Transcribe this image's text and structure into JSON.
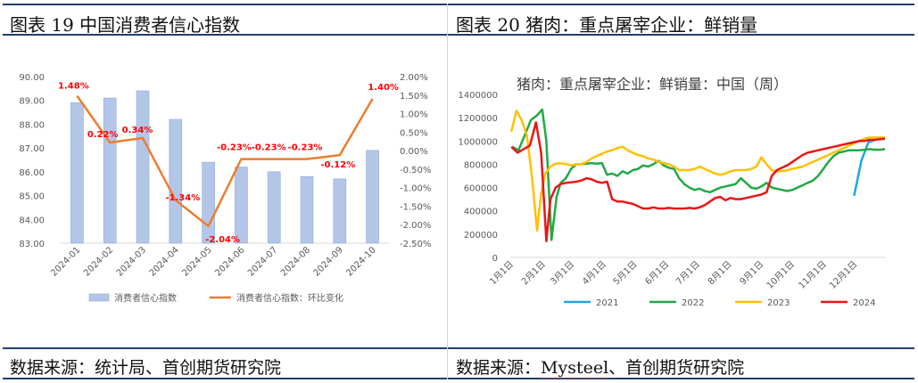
{
  "left_panel": {
    "title": "图表 19  中国消费者信心指数",
    "source": "数据来源：统计局、首创期货研究院"
  },
  "right_panel": {
    "title": "图表 20  猪肉：重点屠宰企业：鲜销量",
    "source_prefix": "数据来源：",
    "source_brand": "Mysteel",
    "source_suffix": "、首创期货研究院"
  },
  "colors": {
    "frame_line": "#1f3f6e",
    "bar_fill": "#b4c6e7",
    "bar_stroke": "#8ea9db",
    "line_orange": "#ed7d31",
    "label_red": "#ff0000",
    "s2021": "#1ea7e1",
    "s2022": "#22a846",
    "s2023": "#ffc000",
    "s2024": "#e81717"
  },
  "chart_data": [
    {
      "type": "bar",
      "categories": [
        "2024-01",
        "2024-02",
        "2024-03",
        "2024-04",
        "2024-05",
        "2024-06",
        "2024-07",
        "2024-08",
        "2024-09",
        "2024-10"
      ],
      "series": [
        {
          "name": "消费者信心指数",
          "type": "bar",
          "axis": "left",
          "values": [
            88.9,
            89.1,
            89.4,
            88.2,
            86.4,
            86.2,
            86.0,
            85.8,
            85.7,
            86.9
          ]
        },
        {
          "name": "消费者信心指数：环比变化",
          "type": "line",
          "axis": "right",
          "values": [
            1.48,
            0.22,
            0.34,
            -1.34,
            -2.04,
            -0.23,
            -0.23,
            -0.23,
            -0.12,
            1.4
          ],
          "labels": [
            "1.48%",
            "0.22%",
            "0.34%",
            "-1.34%",
            "-2.04%",
            "-0.23%",
            "-0.23%",
            "-0.23%",
            "-0.12%",
            "1.40%"
          ]
        }
      ],
      "ylim_left": [
        83,
        90
      ],
      "yticks_left": [
        "90.00",
        "89.00",
        "88.00",
        "87.00",
        "86.00",
        "85.00",
        "84.00",
        "83.00"
      ],
      "ylim_right": [
        -2.5,
        2.0
      ],
      "yticks_right": [
        "2.00%",
        "1.50%",
        "1.00%",
        "0.50%",
        "0.00%",
        "-0.50%",
        "-1.00%",
        "-1.50%",
        "-2.00%",
        "-2.50%"
      ],
      "legend": [
        "消费者信心指数",
        "消费者信心指数：环比变化"
      ],
      "legend_position": "bottom"
    },
    {
      "type": "line",
      "title": "猪肉：重点屠宰企业：鲜销量：中国（周）",
      "xticks": [
        "1月1日",
        "2月1日",
        "3月1日",
        "4月1日",
        "5月1日",
        "6月1日",
        "7月1日",
        "8月1日",
        "9月1日",
        "10月1日",
        "11月1日",
        "12月1日"
      ],
      "xrange_days": [
        1,
        365
      ],
      "ylim": [
        0,
        1400000
      ],
      "yticks": [
        "1400000",
        "1200000",
        "1000000",
        "800000",
        "600000",
        "400000",
        "200000",
        "0"
      ],
      "legend_position": "bottom",
      "series": [
        {
          "name": "2021",
          "x": [
            335,
            342,
            349,
            356,
            363
          ],
          "values": [
            530000,
            830000,
            990000,
            1010000,
            1020000
          ]
        },
        {
          "name": "2022",
          "x": [
            3,
            9,
            15,
            21,
            27,
            32,
            36,
            41,
            46,
            50,
            55,
            60,
            65,
            70,
            75,
            80,
            85,
            90,
            95,
            100,
            105,
            110,
            115,
            120,
            125,
            130,
            135,
            140,
            145,
            150,
            155,
            160,
            165,
            170,
            175,
            180,
            185,
            190,
            195,
            200,
            205,
            210,
            215,
            220,
            225,
            230,
            235,
            240,
            245,
            250,
            255,
            260,
            265,
            270,
            275,
            280,
            285,
            290,
            295,
            300,
            305,
            310,
            315,
            320,
            325,
            330,
            335,
            340,
            345,
            350,
            355,
            360,
            365
          ],
          "values": [
            950000,
            920000,
            1050000,
            1180000,
            1220000,
            1270000,
            1000000,
            150000,
            520000,
            640000,
            680000,
            760000,
            800000,
            800000,
            805000,
            810000,
            805000,
            810000,
            710000,
            720000,
            700000,
            740000,
            720000,
            750000,
            760000,
            790000,
            780000,
            800000,
            830000,
            790000,
            770000,
            760000,
            680000,
            630000,
            600000,
            580000,
            590000,
            570000,
            560000,
            580000,
            600000,
            610000,
            620000,
            630000,
            680000,
            640000,
            600000,
            590000,
            610000,
            640000,
            600000,
            590000,
            580000,
            570000,
            580000,
            600000,
            620000,
            640000,
            660000,
            700000,
            760000,
            820000,
            870000,
            900000,
            910000,
            920000,
            920000,
            920000,
            925000,
            930000,
            925000,
            925000,
            930000
          ]
        },
        {
          "name": "2023",
          "x": [
            2,
            7,
            12,
            17,
            22,
            27,
            31,
            35,
            40,
            44,
            48,
            52,
            56,
            60,
            65,
            70,
            75,
            80,
            85,
            90,
            95,
            100,
            105,
            110,
            115,
            120,
            125,
            130,
            135,
            140,
            145,
            150,
            155,
            160,
            165,
            170,
            175,
            180,
            185,
            190,
            195,
            200,
            205,
            210,
            215,
            220,
            225,
            230,
            235,
            240,
            245,
            250,
            255,
            260,
            265,
            270,
            275,
            280,
            285,
            290,
            295,
            300,
            305,
            310,
            315,
            320,
            325,
            330,
            335,
            340,
            345,
            350,
            355,
            360,
            365
          ],
          "values": [
            1080000,
            1260000,
            1180000,
            1050000,
            700000,
            230000,
            550000,
            720000,
            780000,
            800000,
            810000,
            805000,
            800000,
            790000,
            800000,
            800000,
            820000,
            850000,
            870000,
            890000,
            910000,
            920000,
            940000,
            950000,
            920000,
            900000,
            880000,
            870000,
            850000,
            840000,
            820000,
            810000,
            800000,
            780000,
            750000,
            750000,
            750000,
            760000,
            780000,
            760000,
            740000,
            720000,
            710000,
            720000,
            740000,
            750000,
            750000,
            750000,
            760000,
            780000,
            860000,
            800000,
            750000,
            740000,
            740000,
            750000,
            760000,
            770000,
            780000,
            800000,
            820000,
            840000,
            860000,
            880000,
            900000,
            920000,
            940000,
            960000,
            980000,
            1000000,
            1020000,
            1030000,
            1030000,
            1030000,
            1030000
          ]
        },
        {
          "name": "2024",
          "x": [
            2,
            8,
            14,
            20,
            26,
            31,
            36,
            40,
            45,
            50,
            55,
            60,
            65,
            70,
            75,
            80,
            85,
            90,
            95,
            100,
            105,
            110,
            115,
            120,
            125,
            130,
            135,
            140,
            145,
            150,
            155,
            160,
            165,
            170,
            175,
            180,
            185,
            190,
            195,
            200,
            205,
            210,
            215,
            220,
            225,
            230,
            235,
            240,
            245,
            250,
            255,
            260,
            265,
            270,
            275,
            280,
            285,
            290,
            295,
            300,
            305,
            310,
            315,
            320,
            325,
            330,
            335,
            340,
            345,
            350,
            355,
            360,
            365
          ],
          "values": [
            950000,
            900000,
            930000,
            960000,
            1160000,
            900000,
            140000,
            500000,
            600000,
            630000,
            640000,
            645000,
            650000,
            660000,
            680000,
            670000,
            650000,
            640000,
            650000,
            500000,
            480000,
            480000,
            470000,
            460000,
            440000,
            420000,
            420000,
            430000,
            420000,
            420000,
            425000,
            420000,
            420000,
            420000,
            425000,
            420000,
            430000,
            450000,
            480000,
            510000,
            520000,
            490000,
            510000,
            500000,
            500000,
            510000,
            520000,
            530000,
            540000,
            560000,
            700000,
            750000,
            770000,
            790000,
            820000,
            850000,
            880000,
            900000,
            910000,
            920000,
            930000,
            940000,
            950000,
            960000,
            970000,
            980000,
            990000,
            1000000,
            1000000,
            1010000,
            1010000,
            1015000,
            1020000
          ]
        }
      ]
    }
  ]
}
